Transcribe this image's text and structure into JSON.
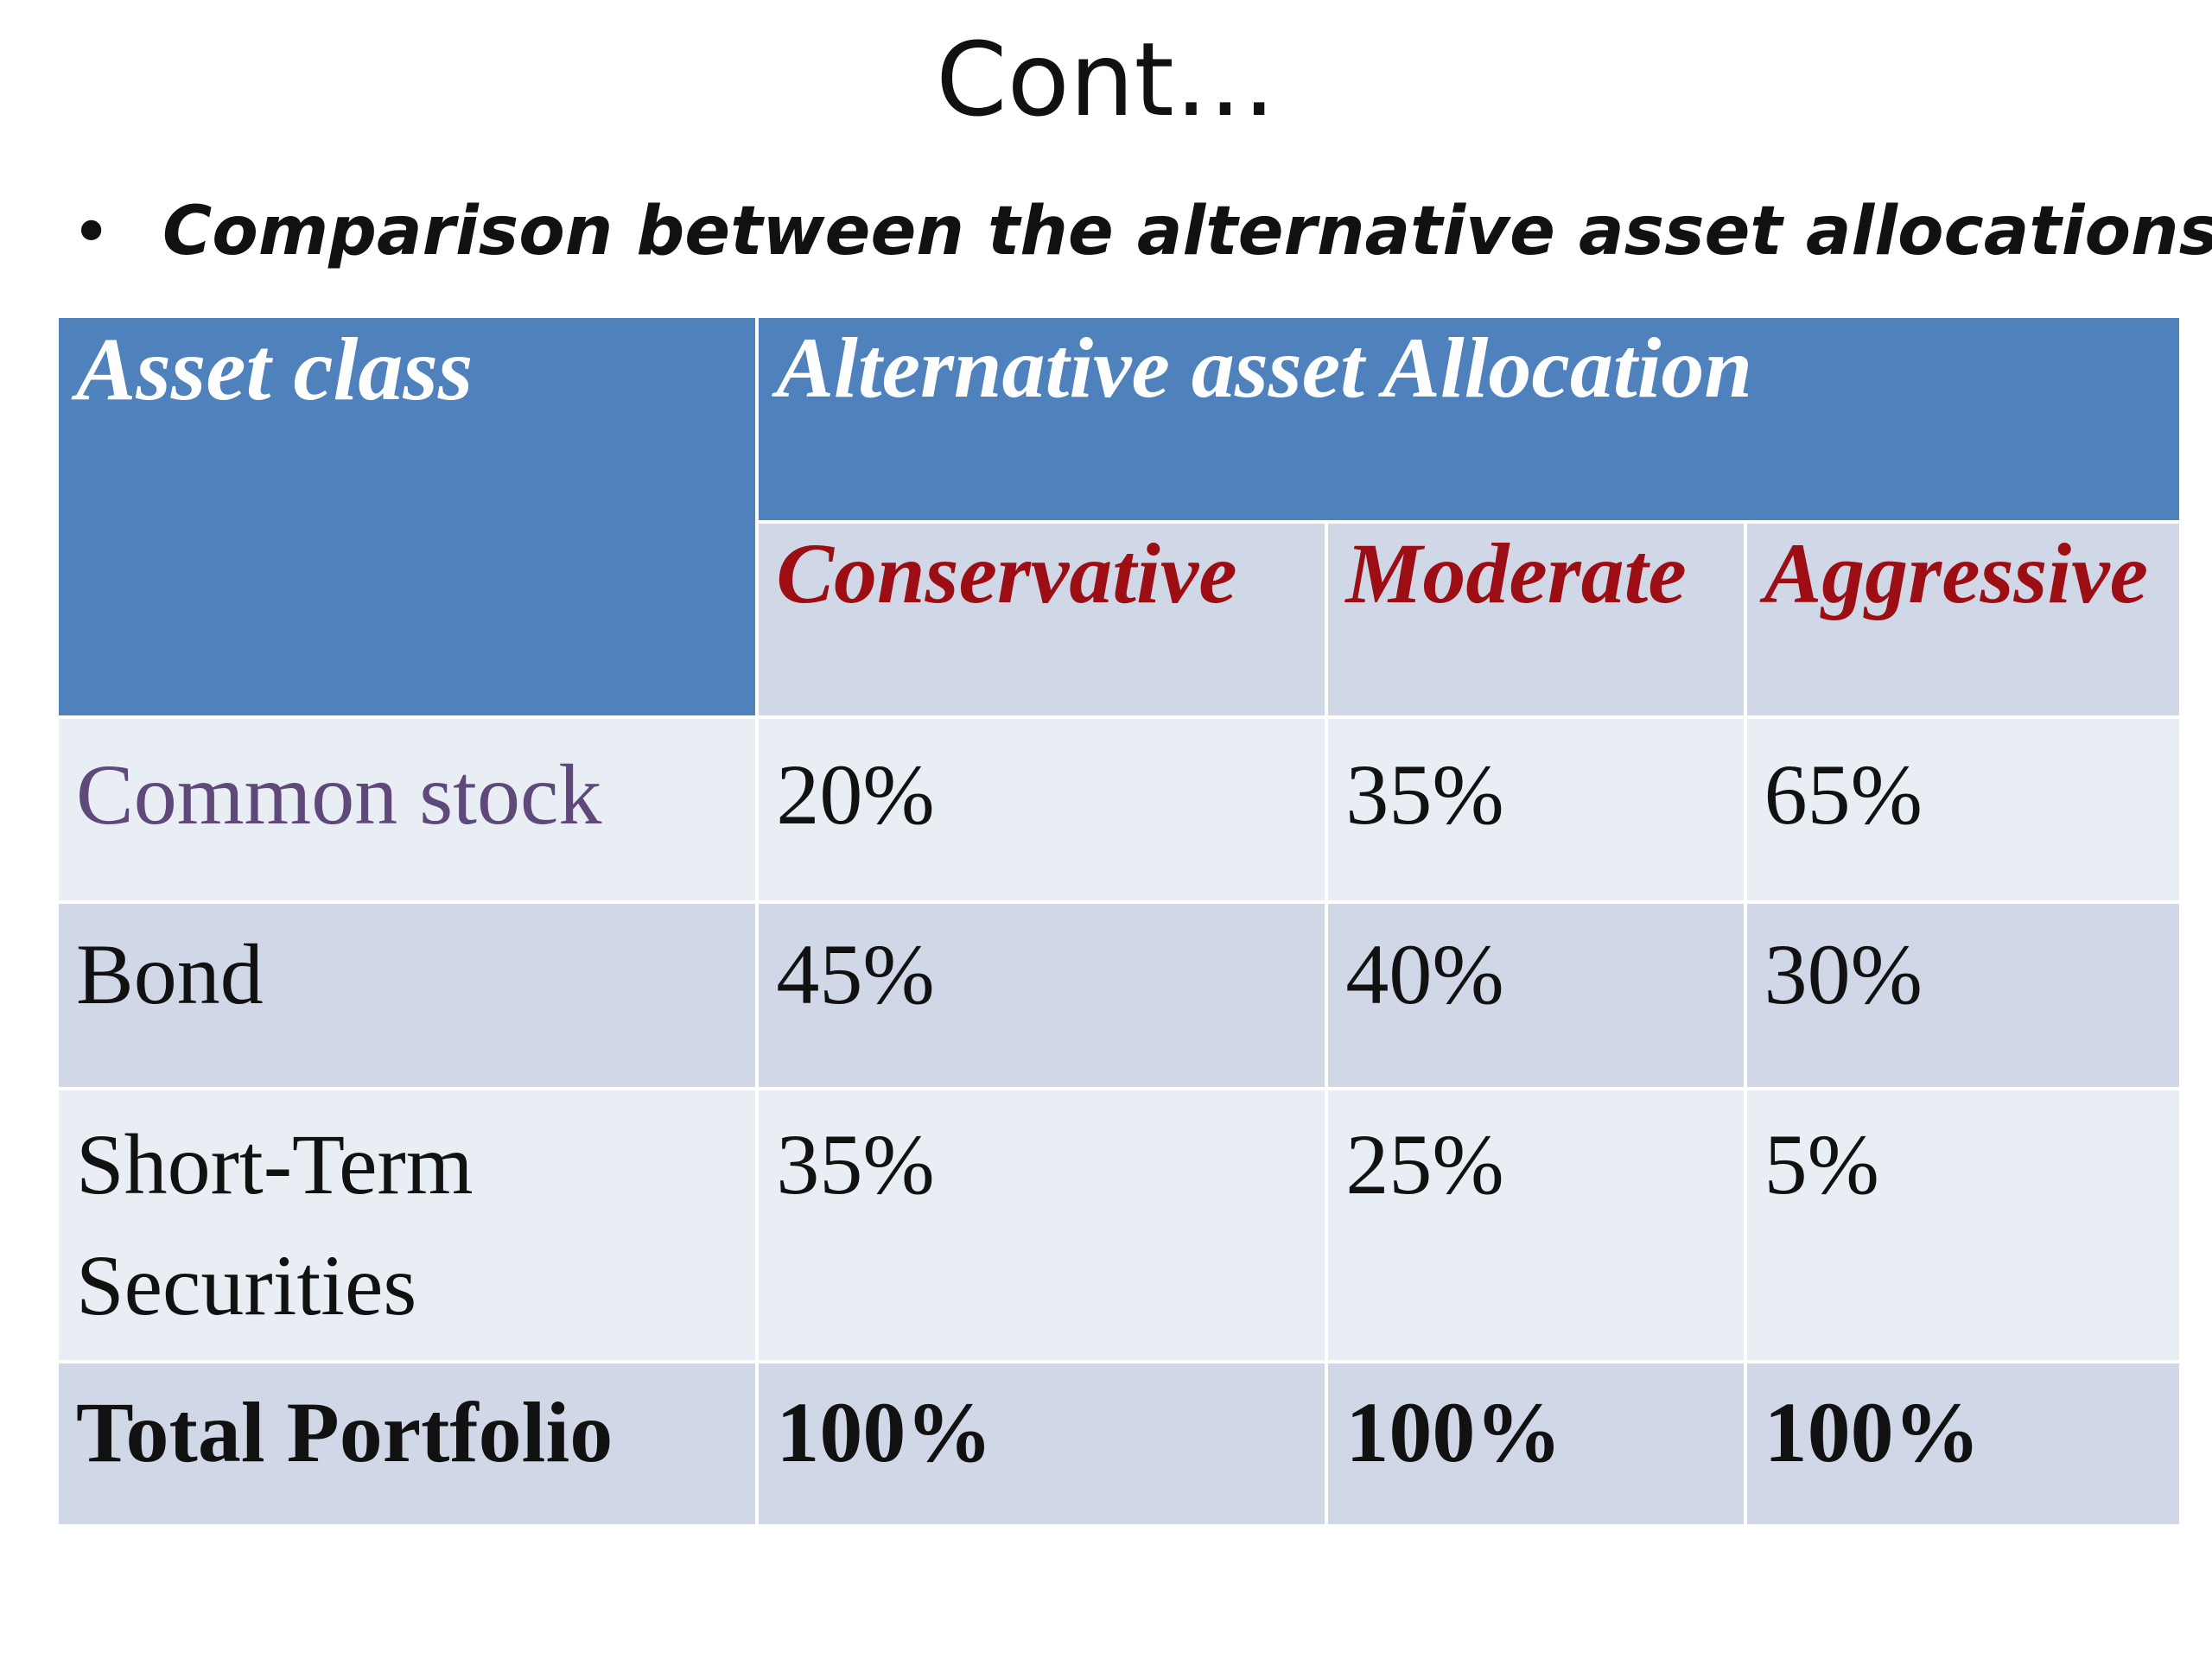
{
  "slide": {
    "title": "Cont…",
    "bullet": "Comparison between the alternative asset allocations"
  },
  "table": {
    "asset_class_header": "Asset class",
    "group_header": "Alternative asset Allocation",
    "columns": [
      "Conservative",
      "Moderate",
      "Aggressive"
    ],
    "rows": [
      {
        "label": "Common stock",
        "values": [
          "20%",
          "35%",
          "65%"
        ]
      },
      {
        "label": "Bond",
        "values": [
          "45%",
          "40%",
          "30%"
        ]
      },
      {
        "label": "Short-Term Securities",
        "values": [
          "35%",
          "25%",
          "5%"
        ]
      },
      {
        "label": "Total Portfolio",
        "values": [
          "100%",
          "100%",
          "100%"
        ]
      }
    ]
  },
  "colors": {
    "header_blue": "#4f81bd",
    "subheader_text": "#9c0e13",
    "row_light": "#e9edf4",
    "row_dark": "#d0d8e8",
    "common_stock_label": "#5f497a"
  }
}
